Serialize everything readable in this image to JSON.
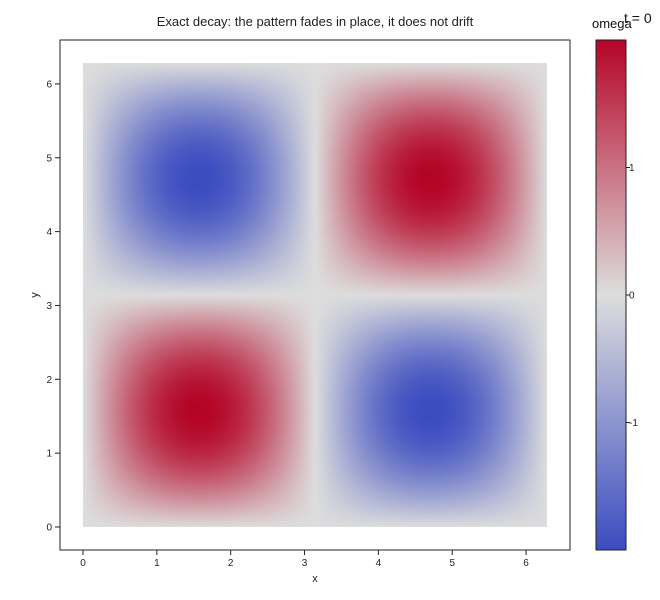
{
  "title": "Exact decay: the pattern fades in place, it does not drift",
  "time_label": "t = 0",
  "colorbar": {
    "title": "omega",
    "ticks": [
      1,
      0,
      -1
    ],
    "colormap": "coolwarm"
  },
  "chart_data": {
    "type": "heatmap",
    "title": "Exact decay: the pattern fades in place, it does not drift",
    "xlabel": "x",
    "ylabel": "y",
    "field": "omega = 2 sin(x) sin(y)",
    "xlim": [
      0,
      6.2832
    ],
    "ylim": [
      0,
      6.2832
    ],
    "xticks": [
      0,
      1,
      2,
      3,
      4,
      5,
      6
    ],
    "yticks": [
      0,
      1,
      2,
      3,
      4,
      5,
      6
    ],
    "zlim": [
      -2,
      2
    ],
    "extrema": [
      {
        "x": 1.571,
        "y": 1.571,
        "value": 2
      },
      {
        "x": 4.712,
        "y": 1.571,
        "value": -2
      },
      {
        "x": 1.571,
        "y": 4.712,
        "value": -2
      },
      {
        "x": 4.712,
        "y": 4.712,
        "value": 2
      }
    ],
    "colors": {
      "min": "#3b4cc0",
      "mid": "#dddddd",
      "max": "#b40426"
    }
  }
}
